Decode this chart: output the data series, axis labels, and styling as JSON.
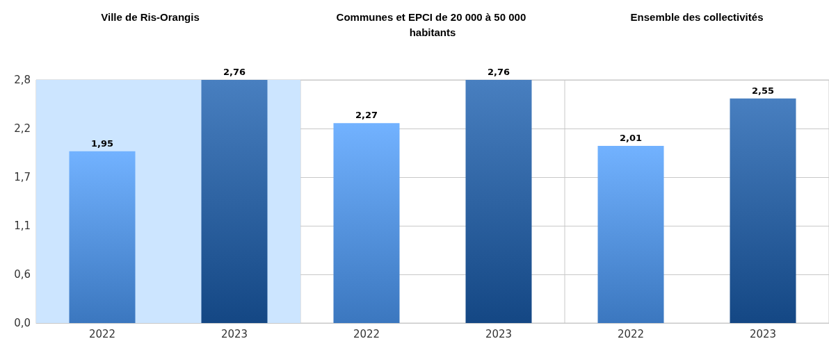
{
  "chart_data": [
    {
      "type": "bar",
      "title": "Ville de Ris-Orangis",
      "categories": [
        "2022",
        "2023"
      ],
      "values": [
        1.95,
        2.76
      ],
      "value_labels": [
        "1,95",
        "2,76"
      ],
      "colors": [
        "#4f9fff",
        "#1a5fb0"
      ],
      "ylim": [
        0,
        2.76
      ],
      "yticks": [
        {
          "value": 0,
          "label": "0,0"
        },
        {
          "value": 0.552,
          "label": "0,6"
        },
        {
          "value": 1.104,
          "label": "1,1"
        },
        {
          "value": 1.656,
          "label": "1,7"
        },
        {
          "value": 2.208,
          "label": "2,2"
        },
        {
          "value": 2.76,
          "label": "2,8"
        }
      ],
      "grid": "y",
      "bands": [
        {
          "axis": "x",
          "from": "2022",
          "to": "2023",
          "color": "#cce5ff"
        }
      ]
    },
    {
      "type": "bar",
      "title": "Communes et EPCI de 20 000 à 50 000 habitants",
      "categories": [
        "2022",
        "2023"
      ],
      "values": [
        2.27,
        2.76
      ],
      "value_labels": [
        "2,27",
        "2,76"
      ],
      "colors": [
        "#4f9fff",
        "#1a5fb0"
      ],
      "ylim": [
        0,
        2.76
      ],
      "yticks": [
        0,
        0.552,
        1.104,
        1.656,
        2.208,
        2.76
      ],
      "grid": "y",
      "tick_labels": "x"
    },
    {
      "type": "bar",
      "title": "Ensemble des collectivités",
      "categories": [
        "2022",
        "2023"
      ],
      "values": [
        2.01,
        2.55
      ],
      "value_labels": [
        "2,01",
        "2,55"
      ],
      "colors": [
        "#4f9fff",
        "#1a5fb0"
      ],
      "ylim": [
        0,
        2.76
      ],
      "yticks": [
        0,
        0.552,
        1.104,
        1.656,
        2.208,
        2.76
      ],
      "grid": "y",
      "tick_labels": "x"
    }
  ]
}
